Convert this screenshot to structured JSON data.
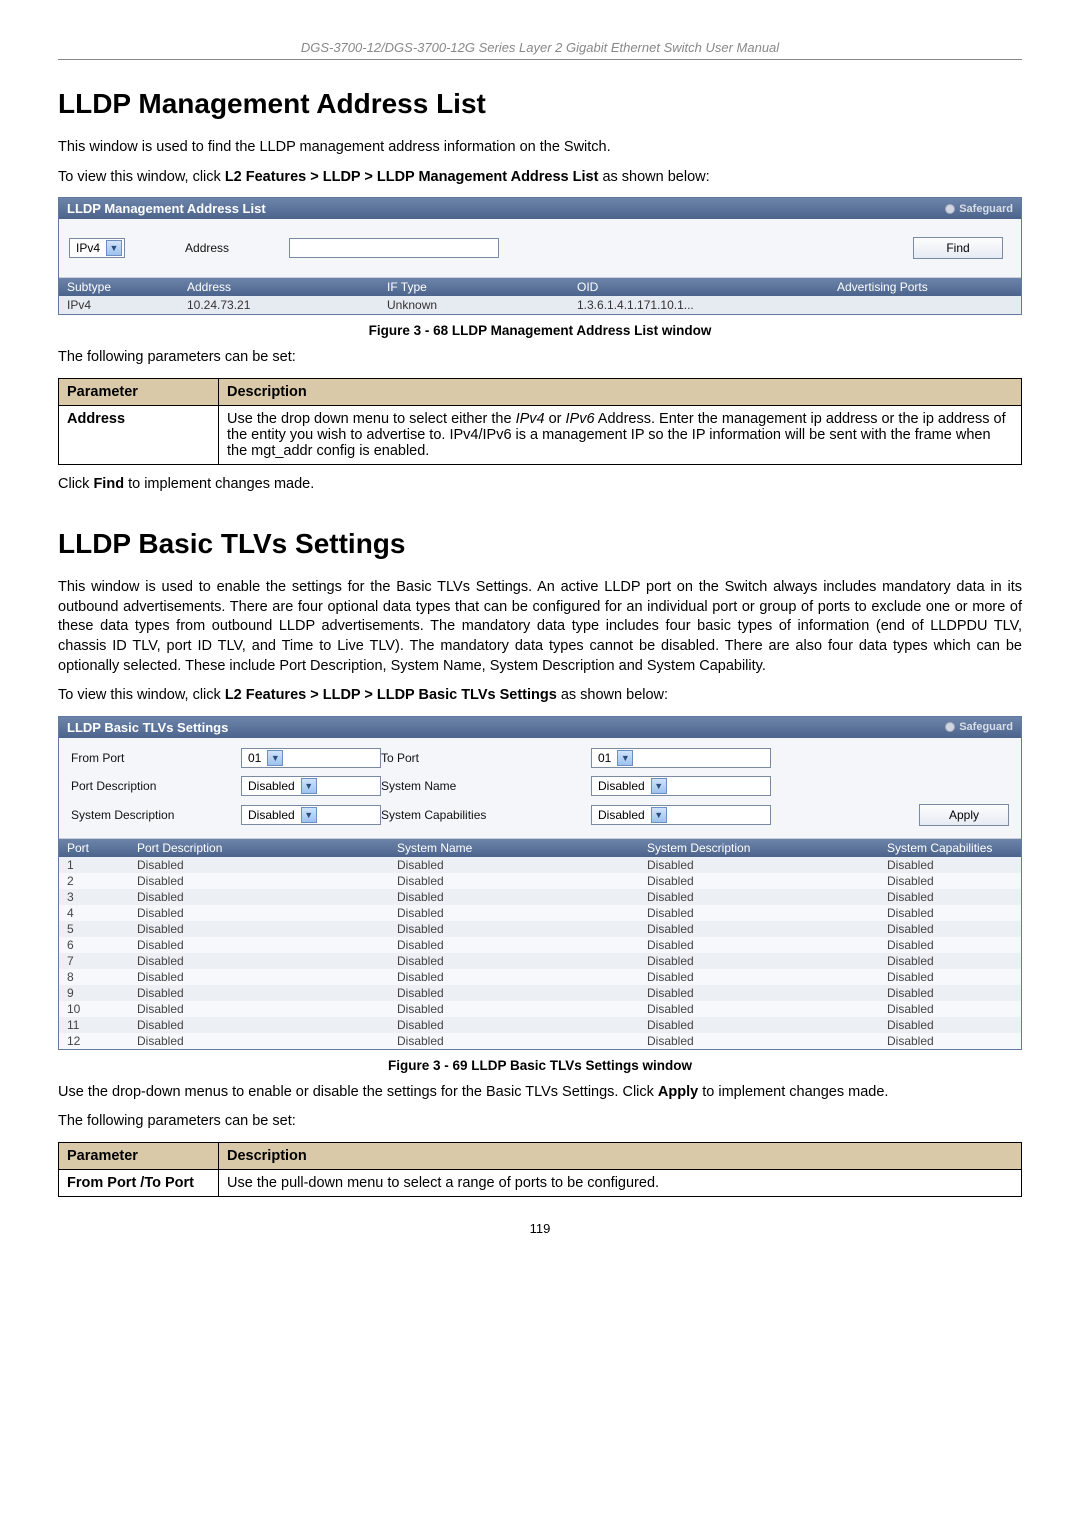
{
  "doc_header": "DGS-3700-12/DGS-3700-12G Series Layer 2 Gigabit Ethernet Switch User Manual",
  "page_number": "119",
  "section1": {
    "title": "LLDP Management Address List",
    "intro": "This window is used to find the LLDP management address information on the Switch.",
    "nav_prefix": "To view this window, click ",
    "nav_bold": "L2 Features > LLDP > LLDP Management Address List",
    "nav_suffix": " as shown below:",
    "panel": {
      "title": "LLDP Management Address List",
      "safeguard": "Safeguard",
      "select_value": "IPv4",
      "address_label": "Address",
      "find_button": "Find",
      "columns": {
        "c1": "Subtype",
        "c2": "Address",
        "c3": "IF Type",
        "c4": "OID",
        "c5": "Advertising Ports"
      },
      "row": {
        "c1": "IPv4",
        "c2": "10.24.73.21",
        "c3": "Unknown",
        "c4": "1.3.6.1.4.1.171.10.1...",
        "c5": ""
      }
    },
    "fig_caption": "Figure 3 - 68 LLDP Management Address List window",
    "params_intro": "The following parameters can be set:",
    "param_head_1": "Parameter",
    "param_head_2": "Description",
    "param_row_name": "Address",
    "param_row_desc_1": "Use the drop down menu to select either the ",
    "param_row_desc_ipv4": "IPv4",
    "param_row_desc_or": " or ",
    "param_row_desc_ipv6": "IPv6",
    "param_row_desc_2": " Address. Enter the management ip address or the ip address of the entity you wish to advertise to. IPv4/IPv6 is a management IP so the IP information will be sent with the frame when the mgt_addr config is enabled.",
    "post_text_1": "Click ",
    "post_text_bold": "Find",
    "post_text_2": " to implement changes made."
  },
  "section2": {
    "title": "LLDP Basic TLVs Settings",
    "intro": "This window is used to enable the settings for the Basic TLVs Settings. An active LLDP port on the Switch always includes mandatory data in its outbound advertisements. There are four optional data types that can be configured for an individual port or group of ports to exclude one or more of these data types from outbound LLDP advertisements. The mandatory data type includes four basic types of information (end of LLDPDU TLV, chassis ID TLV, port ID TLV, and Time to Live TLV). The mandatory data types cannot be disabled. There are also four data types which can be optionally selected. These include Port Description, System Name, System Description and System Capability.",
    "nav_prefix": "To view this window, click ",
    "nav_bold": "L2 Features > LLDP > LLDP Basic TLVs Settings",
    "nav_suffix": " as shown below:",
    "panel": {
      "title": "LLDP Basic TLVs Settings",
      "safeguard": "Safeguard",
      "labels": {
        "from_port": "From Port",
        "to_port": "To Port",
        "port_desc": "Port Description",
        "sys_name": "System Name",
        "sys_desc": "System Description",
        "sys_cap": "System Capabilities"
      },
      "values": {
        "from_port": "01",
        "to_port": "01",
        "port_desc": "Disabled",
        "sys_name": "Disabled",
        "sys_desc": "Disabled",
        "sys_cap": "Disabled"
      },
      "apply_button": "Apply",
      "columns": {
        "c1": "Port",
        "c2": "Port Description",
        "c3": "System Name",
        "c4": "System Description",
        "c5": "System Capabilities"
      },
      "rows": [
        {
          "c1": "1",
          "c2": "Disabled",
          "c3": "Disabled",
          "c4": "Disabled",
          "c5": "Disabled"
        },
        {
          "c1": "2",
          "c2": "Disabled",
          "c3": "Disabled",
          "c4": "Disabled",
          "c5": "Disabled"
        },
        {
          "c1": "3",
          "c2": "Disabled",
          "c3": "Disabled",
          "c4": "Disabled",
          "c5": "Disabled"
        },
        {
          "c1": "4",
          "c2": "Disabled",
          "c3": "Disabled",
          "c4": "Disabled",
          "c5": "Disabled"
        },
        {
          "c1": "5",
          "c2": "Disabled",
          "c3": "Disabled",
          "c4": "Disabled",
          "c5": "Disabled"
        },
        {
          "c1": "6",
          "c2": "Disabled",
          "c3": "Disabled",
          "c4": "Disabled",
          "c5": "Disabled"
        },
        {
          "c1": "7",
          "c2": "Disabled",
          "c3": "Disabled",
          "c4": "Disabled",
          "c5": "Disabled"
        },
        {
          "c1": "8",
          "c2": "Disabled",
          "c3": "Disabled",
          "c4": "Disabled",
          "c5": "Disabled"
        },
        {
          "c1": "9",
          "c2": "Disabled",
          "c3": "Disabled",
          "c4": "Disabled",
          "c5": "Disabled"
        },
        {
          "c1": "10",
          "c2": "Disabled",
          "c3": "Disabled",
          "c4": "Disabled",
          "c5": "Disabled"
        },
        {
          "c1": "11",
          "c2": "Disabled",
          "c3": "Disabled",
          "c4": "Disabled",
          "c5": "Disabled"
        },
        {
          "c1": "12",
          "c2": "Disabled",
          "c3": "Disabled",
          "c4": "Disabled",
          "c5": "Disabled"
        }
      ]
    },
    "fig_caption": "Figure 3 - 69 LLDP Basic TLVs Settings window",
    "post_panel_1": "Use the drop-down menus to enable or disable the settings for the Basic TLVs Settings. Click ",
    "post_panel_bold": "Apply",
    "post_panel_2": " to implement changes made.",
    "params_intro": "The following parameters can be set:",
    "param_head_1": "Parameter",
    "param_head_2": "Description",
    "param_row_name": "From Port /To Port",
    "param_row_desc": "Use the pull-down menu to select a range of ports to be configured."
  }
}
